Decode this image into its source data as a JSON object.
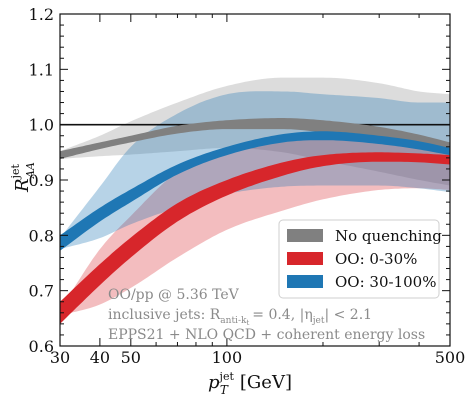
{
  "chart_data": {
    "type": "area",
    "xlabel_main": "p",
    "xlabel_sub": "T",
    "xlabel_sup": "jet",
    "xlabel_unit": "[GeV]",
    "ylabel_main": "R",
    "ylabel_sub": "AA",
    "ylabel_sup": "jet",
    "xscale": "log",
    "xlim": [
      30,
      500
    ],
    "ylim": [
      0.6,
      1.2
    ],
    "xticks": [
      30,
      40,
      50,
      100,
      500
    ],
    "xtick_labels": [
      "30",
      "40",
      "50",
      "100",
      "500"
    ],
    "yticks": [
      0.6,
      0.7,
      0.8,
      0.9,
      1.0,
      1.1,
      1.2
    ],
    "ytick_labels": [
      "0.6",
      "0.7",
      "0.8",
      "0.9",
      "1.0",
      "1.1",
      "1.2"
    ],
    "reference_line": 1.0,
    "legend_position": "lower-right",
    "x": [
      30,
      40,
      50,
      70,
      100,
      150,
      200,
      300,
      400,
      500
    ],
    "series": [
      {
        "name": "No quenching",
        "color": "#808080",
        "center_low": [
          0.938,
          0.956,
          0.968,
          0.984,
          0.992,
          0.992,
          0.986,
          0.972,
          0.958,
          0.945
        ],
        "center_high": [
          0.952,
          0.968,
          0.98,
          0.998,
          1.008,
          1.012,
          1.008,
          0.996,
          0.982,
          0.968
        ],
        "band_low": [
          0.938,
          0.943,
          0.946,
          0.952,
          0.958,
          0.95,
          0.935,
          0.915,
          0.9,
          0.89
        ],
        "band_high": [
          0.952,
          0.98,
          1.006,
          1.04,
          1.07,
          1.085,
          1.085,
          1.075,
          1.06,
          1.055
        ]
      },
      {
        "name": "OO: 0-30%",
        "color": "#d7262b",
        "center_low": [
          0.64,
          0.71,
          0.76,
          0.825,
          0.872,
          0.908,
          0.925,
          0.933,
          0.932,
          0.928
        ],
        "center_high": [
          0.68,
          0.748,
          0.796,
          0.858,
          0.9,
          0.932,
          0.945,
          0.95,
          0.948,
          0.945
        ],
        "band_low": [
          0.655,
          0.675,
          0.705,
          0.76,
          0.81,
          0.845,
          0.865,
          0.882,
          0.885,
          0.882
        ],
        "band_high": [
          0.665,
          0.775,
          0.835,
          0.915,
          0.955,
          0.975,
          0.975,
          0.97,
          0.965,
          0.96
        ]
      },
      {
        "name": "OO: 30-100%",
        "color": "#1f77b4",
        "center_low": [
          0.772,
          0.825,
          0.86,
          0.91,
          0.945,
          0.968,
          0.972,
          0.965,
          0.955,
          0.945
        ],
        "center_high": [
          0.8,
          0.85,
          0.883,
          0.928,
          0.96,
          0.983,
          0.988,
          0.98,
          0.97,
          0.958
        ],
        "band_low": [
          0.775,
          0.795,
          0.82,
          0.85,
          0.875,
          0.888,
          0.89,
          0.89,
          0.885,
          0.878
        ],
        "band_high": [
          0.795,
          0.888,
          0.96,
          1.02,
          1.055,
          1.06,
          1.055,
          1.048,
          1.04,
          1.04
        ]
      }
    ],
    "annotations": [
      "OO/pp @ 5.36 TeV",
      "inclusive jets: R",
      "anti-k",
      "t",
      "= 0.4, |η",
      "jet",
      "| < 2.1",
      "EPPS21 + NLO QCD + coherent energy loss"
    ]
  }
}
